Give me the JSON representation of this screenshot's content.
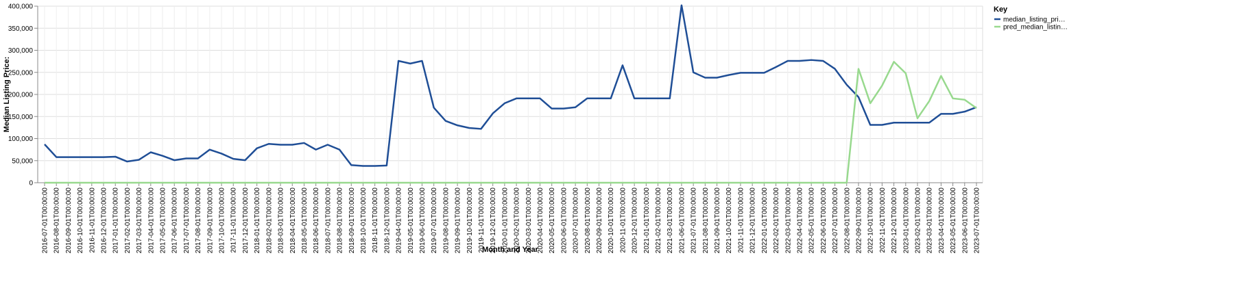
{
  "chart_data": {
    "type": "line",
    "xlabel": "Month and Year",
    "ylabel": "Median Listing Price:",
    "ylim": [
      0,
      400000
    ],
    "y_ticks": [
      "0",
      "50,000",
      "100,000",
      "150,000",
      "200,000",
      "250,000",
      "300,000",
      "350,000",
      "400,000"
    ],
    "y_tick_values": [
      0,
      50000,
      100000,
      150000,
      200000,
      250000,
      300000,
      350000,
      400000
    ],
    "grid": true,
    "legend": {
      "title": "Key",
      "placement": "top-right",
      "items": [
        {
          "label": "median_listing_pri…",
          "color": "#1f4e96"
        },
        {
          "label": "pred_median_listin…",
          "color": "#98d98e"
        }
      ]
    },
    "x": [
      "2016-07-01T00:00:00",
      "2016-08-01T00:00:00",
      "2016-09-01T00:00:00",
      "2016-10-01T00:00:00",
      "2016-11-01T00:00:00",
      "2016-12-01T00:00:00",
      "2017-01-01T00:00:00",
      "2017-02-01T00:00:00",
      "2017-03-01T00:00:00",
      "2017-04-01T00:00:00",
      "2017-05-01T00:00:00",
      "2017-06-01T00:00:00",
      "2017-07-01T00:00:00",
      "2017-08-01T00:00:00",
      "2017-09-01T00:00:00",
      "2017-10-01T00:00:00",
      "2017-11-01T00:00:00",
      "2017-12-01T00:00:00",
      "2018-01-01T00:00:00",
      "2018-02-01T00:00:00",
      "2018-03-01T00:00:00",
      "2018-04-01T00:00:00",
      "2018-05-01T00:00:00",
      "2018-06-01T00:00:00",
      "2018-07-01T00:00:00",
      "2018-08-01T00:00:00",
      "2018-09-01T00:00:00",
      "2018-10-01T00:00:00",
      "2018-11-01T00:00:00",
      "2018-12-01T00:00:00",
      "2019-04-01T00:00:00",
      "2019-05-01T00:00:00",
      "2019-06-01T00:00:00",
      "2019-07-01T00:00:00",
      "2019-08-01T00:00:00",
      "2019-09-01T00:00:00",
      "2019-10-01T00:00:00",
      "2019-11-01T00:00:00",
      "2019-12-01T00:00:00",
      "2020-01-01T00:00:00",
      "2020-02-01T00:00:00",
      "2020-03-01T00:00:00",
      "2020-04-01T00:00:00",
      "2020-05-01T00:00:00",
      "2020-06-01T00:00:00",
      "2020-07-01T00:00:00",
      "2020-08-01T00:00:00",
      "2020-09-01T00:00:00",
      "2020-10-01T00:00:00",
      "2020-11-01T00:00:00",
      "2020-12-01T00:00:00",
      "2021-01-01T00:00:00",
      "2021-02-01T00:00:00",
      "2021-03-01T00:00:00",
      "2021-06-01T00:00:00",
      "2021-07-01T00:00:00",
      "2021-08-01T00:00:00",
      "2021-09-01T00:00:00",
      "2021-10-01T00:00:00",
      "2021-11-01T00:00:00",
      "2021-12-01T00:00:00",
      "2022-01-01T00:00:00",
      "2022-02-01T00:00:00",
      "2022-03-01T00:00:00",
      "2022-04-01T00:00:00",
      "2022-05-01T00:00:00",
      "2022-06-01T00:00:00",
      "2022-07-01T00:00:00",
      "2022-08-01T00:00:00",
      "2022-09-01T00:00:00",
      "2022-10-01T00:00:00",
      "2022-11-01T00:00:00",
      "2022-12-01T00:00:00",
      "2023-01-01T00:00:00",
      "2023-02-01T00:00:00",
      "2023-03-01T00:00:00",
      "2023-04-01T00:00:00",
      "2023-05-01T00:00:00",
      "2023-06-01T00:00:00",
      "2023-07-01T00:00:00"
    ],
    "series": [
      {
        "name": "median_listing_pri…",
        "color": "#1f4e96",
        "values": [
          87000,
          58000,
          58000,
          58000,
          58000,
          58000,
          59000,
          48000,
          52000,
          69000,
          61000,
          51000,
          55000,
          55000,
          75000,
          66000,
          54000,
          51000,
          78000,
          88000,
          86000,
          86000,
          90000,
          75000,
          86000,
          75000,
          40000,
          38000,
          38000,
          39000,
          276000,
          270000,
          276000,
          170000,
          140000,
          130000,
          124000,
          122000,
          157000,
          180000,
          191000,
          191000,
          191000,
          168000,
          168000,
          171000,
          191000,
          191000,
          191000,
          266000,
          191000,
          191000,
          191000,
          191000,
          402000,
          250000,
          238000,
          238000,
          244000,
          249000,
          249000,
          249000,
          262000,
          276000,
          276000,
          278000,
          276000,
          258000,
          222000,
          194000,
          131000,
          131000,
          136000,
          136000,
          136000,
          136000,
          156000,
          156000,
          161000,
          171000
        ]
      },
      {
        "name": "pred_median_listin…",
        "color": "#98d98e",
        "values": [
          0,
          0,
          0,
          0,
          0,
          0,
          0,
          0,
          0,
          0,
          0,
          0,
          0,
          0,
          0,
          0,
          0,
          0,
          0,
          0,
          0,
          0,
          0,
          0,
          0,
          0,
          0,
          0,
          0,
          0,
          0,
          0,
          0,
          0,
          0,
          0,
          0,
          0,
          0,
          0,
          0,
          0,
          0,
          0,
          0,
          0,
          0,
          0,
          0,
          0,
          0,
          0,
          0,
          0,
          0,
          0,
          0,
          0,
          0,
          0,
          0,
          0,
          0,
          0,
          0,
          0,
          0,
          0,
          0,
          258000,
          180000,
          220000,
          274000,
          248000,
          146000,
          185000,
          242000,
          191000,
          188000,
          169000
        ]
      }
    ]
  }
}
